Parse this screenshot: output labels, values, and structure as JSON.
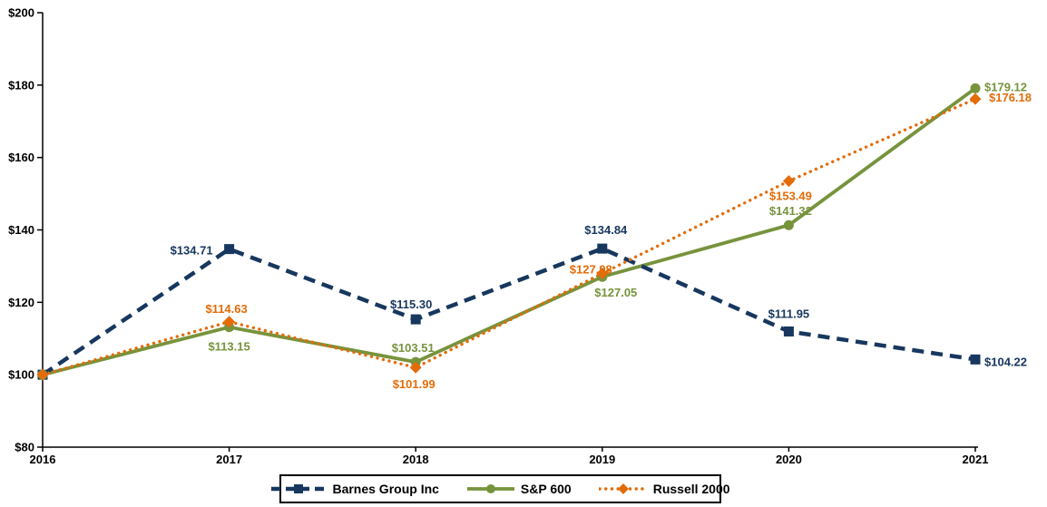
{
  "chart_data": {
    "type": "line",
    "title": "",
    "categories": [
      "2016",
      "2017",
      "2018",
      "2019",
      "2020",
      "2021"
    ],
    "x_axis": {
      "tick_labels": [
        "2016",
        "2017",
        "2018",
        "2019",
        "2020",
        "2021"
      ]
    },
    "y_axis": {
      "min": 80,
      "max": 200,
      "tick_values": [
        80,
        100,
        120,
        140,
        160,
        180,
        200
      ],
      "tick_labels": [
        "$80",
        "$100",
        "$120",
        "$140",
        "$160",
        "$180",
        "$200"
      ]
    },
    "grid": false,
    "legend_position": "bottom-center",
    "axis_color": "#000000",
    "series": [
      {
        "name": "Barnes Group Inc",
        "color": "#17375E",
        "line_style": "dashed",
        "marker": "square",
        "values": [
          100.0,
          134.71,
          115.3,
          134.84,
          111.95,
          104.22
        ],
        "labels": [
          "",
          "$134.71",
          "$115.30",
          "$134.84",
          "$111.95",
          "$104.22"
        ],
        "label_offsets": [
          null,
          {
            "dx": -18,
            "dy": 6,
            "anchor": "end"
          },
          {
            "dx": -5,
            "dy": -12,
            "anchor": "middle"
          },
          {
            "dx": 4,
            "dy": -16,
            "anchor": "middle"
          },
          {
            "dx": 0,
            "dy": -15,
            "anchor": "middle"
          },
          {
            "dx": 10,
            "dy": 7,
            "anchor": "start"
          }
        ]
      },
      {
        "name": "S&P 600",
        "color": "#77933C",
        "line_style": "solid",
        "marker": "circle",
        "values": [
          100.0,
          113.15,
          103.51,
          127.05,
          141.32,
          179.12
        ],
        "labels": [
          "",
          "$113.15",
          "$103.51",
          "$127.05",
          "$141.32",
          "$179.12"
        ],
        "label_offsets": [
          null,
          {
            "dx": 0,
            "dy": 26,
            "anchor": "middle"
          },
          {
            "dx": -3,
            "dy": -11,
            "anchor": "middle"
          },
          {
            "dx": 15,
            "dy": 22,
            "anchor": "middle"
          },
          {
            "dx": 2,
            "dy": -11,
            "anchor": "middle"
          },
          {
            "dx": 10,
            "dy": 3,
            "anchor": "start"
          }
        ]
      },
      {
        "name": "Russell 2000",
        "color": "#E36C09",
        "line_style": "dotted",
        "marker": "diamond",
        "values": [
          100.0,
          114.63,
          101.99,
          127.98,
          153.49,
          176.18
        ],
        "labels": [
          "",
          "$114.63",
          "$101.99",
          "$127.98",
          "$153.49",
          "$176.18"
        ],
        "label_offsets": [
          null,
          {
            "dx": -3,
            "dy": -10,
            "anchor": "middle"
          },
          {
            "dx": -2,
            "dy": 23,
            "anchor": "middle"
          },
          {
            "dx": 11,
            "dy": 0,
            "anchor": "end"
          },
          {
            "dx": 2,
            "dy": 21,
            "anchor": "middle"
          },
          {
            "dx": 15,
            "dy": 3,
            "anchor": "start"
          }
        ]
      }
    ]
  }
}
